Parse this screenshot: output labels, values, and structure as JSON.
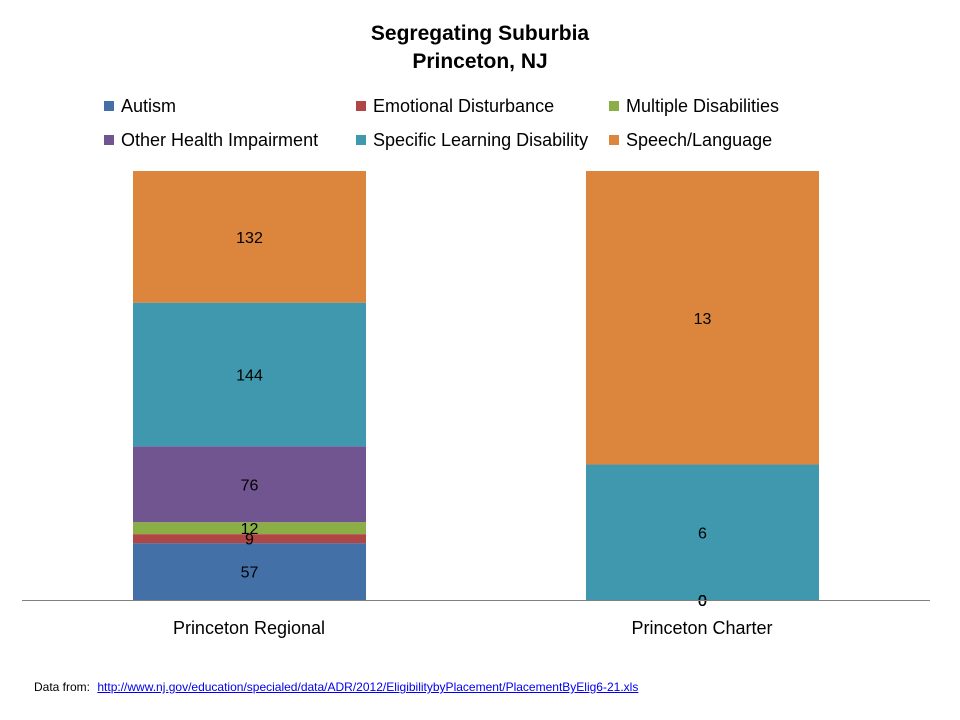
{
  "chart_data": {
    "type": "bar",
    "stacked": true,
    "title": "Segregating Suburbia",
    "subtitle": "Princeton, NJ",
    "categories": [
      "Princeton Regional",
      "Princeton Charter"
    ],
    "series": [
      {
        "name": "Autism",
        "color": "#4470A8",
        "values": [
          57,
          0
        ],
        "labels": [
          "57",
          "0"
        ]
      },
      {
        "name": "Emotional Disturbance",
        "color": "#B04545",
        "values": [
          9,
          0
        ],
        "labels": [
          "9",
          "0"
        ]
      },
      {
        "name": "Multiple Disabilities",
        "color": "#8BAE47",
        "values": [
          12,
          0
        ],
        "labels": [
          "12",
          "0"
        ]
      },
      {
        "name": "Other Health Impairment",
        "color": "#715590",
        "values": [
          76,
          0
        ],
        "labels": [
          "76",
          "0"
        ]
      },
      {
        "name": "Specific Learning Disability",
        "color": "#3F98AE",
        "values": [
          144,
          6
        ],
        "labels": [
          "144",
          "6"
        ]
      },
      {
        "name": "Speech/Language",
        "color": "#DC853D",
        "values": [
          132,
          13
        ],
        "labels": [
          "132",
          "13"
        ]
      }
    ],
    "normalized": true,
    "legend_position": "top",
    "grid": false
  },
  "footer": {
    "prefix": "Data from:",
    "link_text": "http://www.nj.gov/education/specialed/data/ADR/2012/EligibilitybyPlacement/PlacementByElig6-21.xls"
  }
}
